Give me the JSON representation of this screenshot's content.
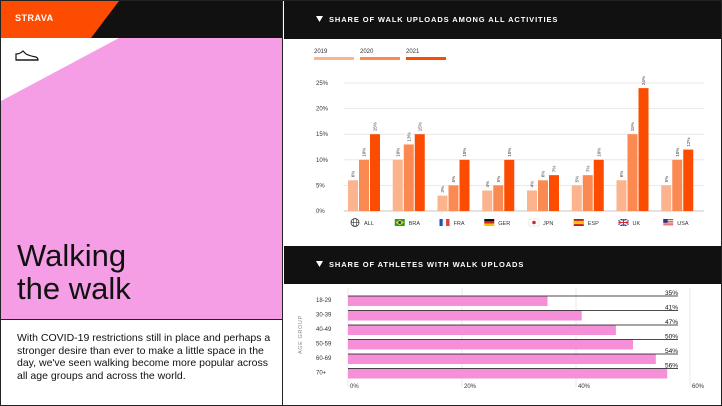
{
  "brand": "STRAVA",
  "title_line1": "Walking",
  "title_line2": "the walk",
  "body": "With COVID-19 restrictions still in place and perhaps a stronger desire than ever to make a little space in the day, we've seen walking become more popular across all age groups and across the world.",
  "colors": {
    "pink": "#f59ee6",
    "orange": "#fc4c02",
    "c2019": "#fbb48e",
    "c2020": "#fb8a52",
    "c2021": "#fc4c02",
    "pinkbar": "#f58fd8"
  },
  "chart_data": [
    {
      "type": "bar",
      "title": "SHARE OF WALK UPLOADS AMONG ALL ACTIVITIES",
      "categories": [
        "ALL",
        "BRA",
        "FRA",
        "GER",
        "JPN",
        "ESP",
        "UK",
        "USA"
      ],
      "flag_icons": [
        "globe-icon",
        "brazil-flag-icon",
        "france-flag-icon",
        "germany-flag-icon",
        "japan-flag-icon",
        "spain-flag-icon",
        "uk-flag-icon",
        "usa-flag-icon"
      ],
      "series": [
        {
          "name": "2019",
          "values": [
            6,
            10,
            3,
            4,
            4,
            5,
            6,
            5
          ]
        },
        {
          "name": "2020",
          "values": [
            10,
            13,
            5,
            5,
            6,
            7,
            15,
            10
          ]
        },
        {
          "name": "2021",
          "values": [
            15,
            15,
            10,
            10,
            7,
            10,
            24,
            12
          ]
        }
      ],
      "value_suffix": "%",
      "ylim": [
        0,
        25
      ],
      "yticks": [
        "0%",
        "5%",
        "10%",
        "15%",
        "20%",
        "25%"
      ],
      "grid": true,
      "legend": "top-left"
    },
    {
      "type": "bar",
      "orientation": "horizontal",
      "title": "SHARE OF ATHLETES WITH WALK UPLOADS",
      "ylabel": "AGE GROUP",
      "categories": [
        "18-29",
        "30-39",
        "40-49",
        "50-59",
        "60-69",
        "70+"
      ],
      "values": [
        35,
        41,
        47,
        50,
        54,
        56
      ],
      "value_labels": [
        "35%",
        "41%",
        "47%",
        "50%",
        "54%",
        "56%"
      ],
      "xlim": [
        0,
        60
      ],
      "xticks": [
        "0%",
        "20%",
        "40%",
        "60%"
      ],
      "grid": true
    }
  ]
}
